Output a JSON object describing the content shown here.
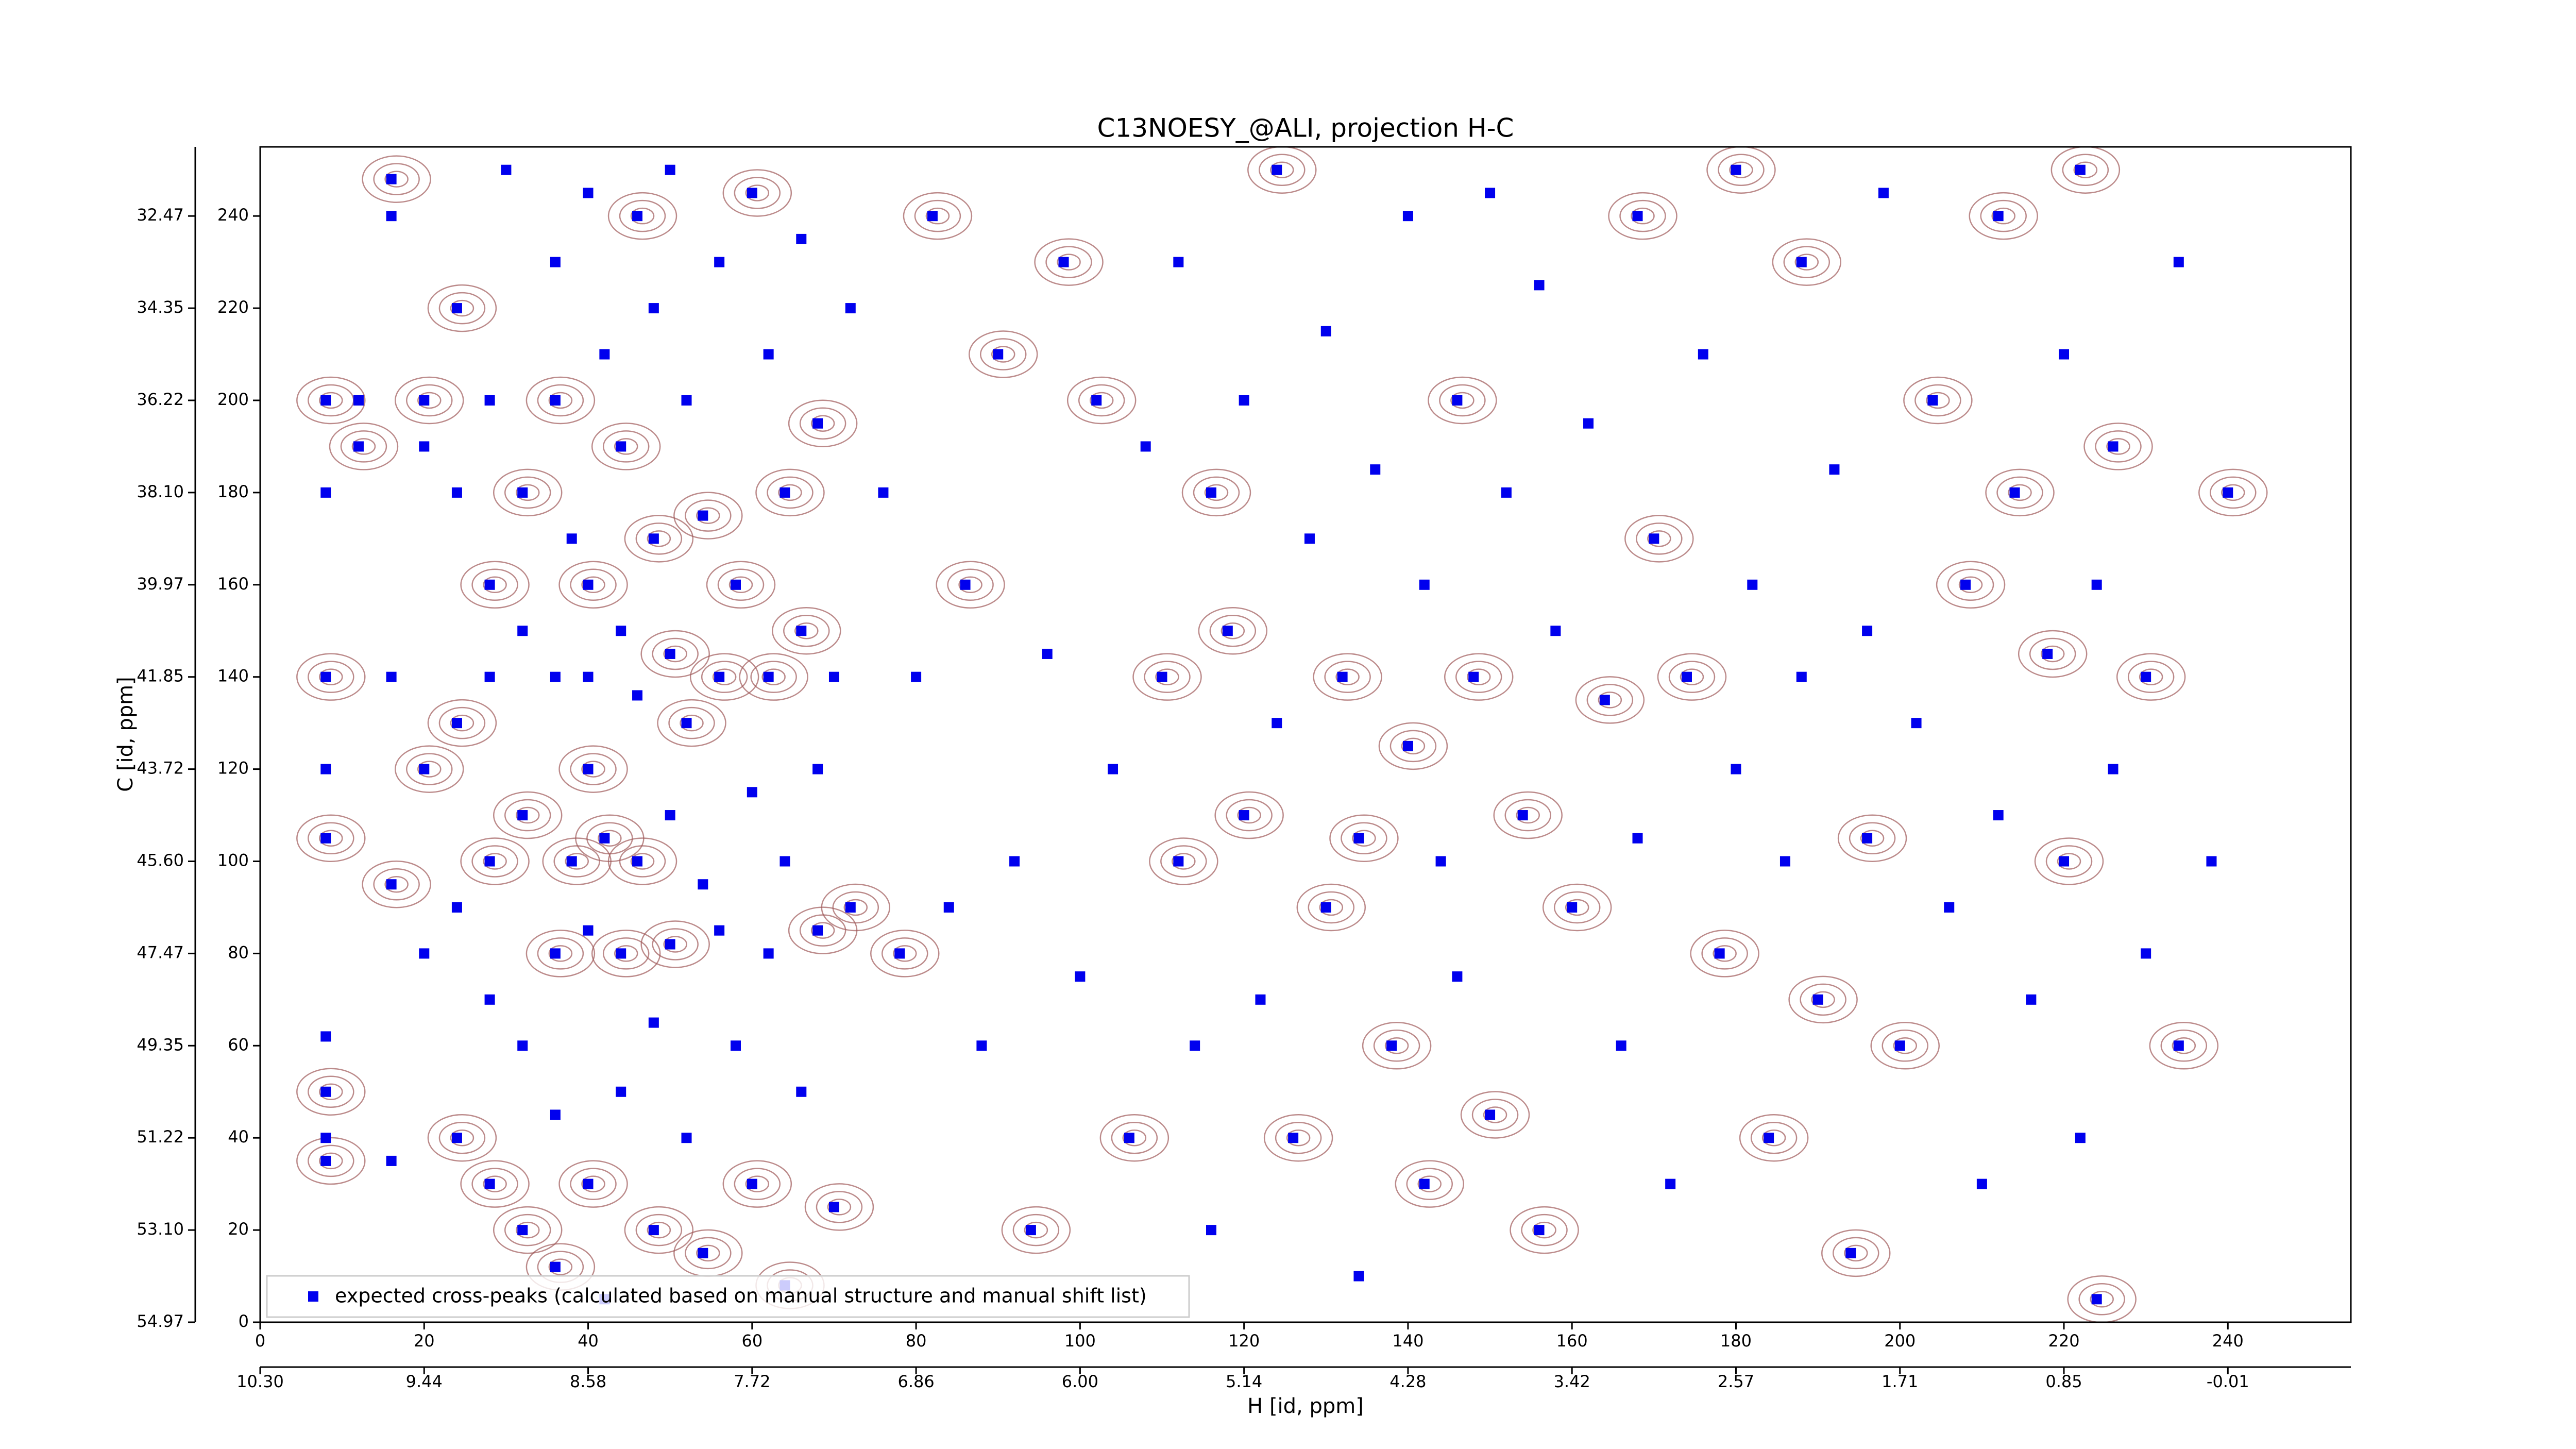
{
  "chart_data": {
    "type": "scatter",
    "title": "C13NOESY_@ALI, projection H-C",
    "xlabel": "H [id, ppm]",
    "ylabel": "C [id, ppm]",
    "legend": "lower left",
    "series": [
      {
        "name": "expected cross-peaks (calculated based on manual structure and manual shift list)",
        "color": "#0000ee",
        "x": [
          8,
          8,
          8,
          8,
          8,
          8,
          8,
          8,
          8,
          12,
          12,
          16,
          16,
          16,
          16,
          16,
          20,
          20,
          20,
          20,
          24,
          24,
          24,
          24,
          24,
          28,
          28,
          28,
          28,
          28,
          28,
          30,
          32,
          32,
          32,
          32,
          32,
          36,
          36,
          36,
          36,
          36,
          36,
          38,
          38,
          40,
          40,
          40,
          40,
          40,
          40,
          42,
          42,
          42,
          44,
          44,
          44,
          44,
          46,
          46,
          46,
          48,
          48,
          48,
          48,
          50,
          50,
          50,
          50,
          52,
          52,
          52,
          54,
          54,
          54,
          56,
          56,
          56,
          58,
          58,
          60,
          60,
          60,
          62,
          62,
          62,
          64,
          64,
          64,
          66,
          66,
          66,
          68,
          68,
          68,
          70,
          70,
          72,
          72,
          76,
          78,
          80,
          82,
          84,
          86,
          88,
          90,
          92,
          94,
          96,
          98,
          100,
          102,
          104,
          106,
          108,
          110,
          112,
          112,
          114,
          116,
          116,
          118,
          120,
          120,
          122,
          124,
          124,
          126,
          128,
          130,
          130,
          132,
          134,
          134,
          136,
          138,
          140,
          140,
          142,
          142,
          144,
          146,
          146,
          148,
          150,
          150,
          152,
          154,
          156,
          156,
          158,
          160,
          162,
          164,
          166,
          168,
          168,
          170,
          172,
          174,
          176,
          178,
          180,
          180,
          182,
          184,
          186,
          188,
          188,
          190,
          192,
          194,
          196,
          196,
          198,
          200,
          202,
          204,
          206,
          208,
          210,
          212,
          212,
          214,
          216,
          218,
          220,
          220,
          222,
          222,
          224,
          224,
          226,
          226,
          230,
          230,
          234,
          234,
          238,
          240
        ],
        "y": [
          200,
          180,
          140,
          120,
          105,
          62,
          50,
          40,
          35,
          200,
          190,
          240,
          248,
          140,
          95,
          35,
          200,
          190,
          120,
          80,
          220,
          180,
          130,
          90,
          40,
          200,
          160,
          140,
          100,
          70,
          30,
          250,
          180,
          150,
          110,
          60,
          20,
          230,
          200,
          140,
          80,
          45,
          12,
          170,
          100,
          245,
          160,
          140,
          120,
          85,
          30,
          210,
          105,
          5,
          190,
          150,
          80,
          50,
          240,
          136,
          100,
          220,
          170,
          65,
          20,
          250,
          145,
          110,
          82,
          200,
          130,
          40,
          175,
          95,
          15,
          230,
          140,
          85,
          160,
          60,
          245,
          115,
          30,
          210,
          140,
          80,
          180,
          100,
          8,
          235,
          150,
          50,
          195,
          120,
          85,
          140,
          25,
          220,
          90,
          180,
          80,
          140,
          240,
          90,
          160,
          60,
          210,
          100,
          20,
          145,
          230,
          75,
          200,
          120,
          40,
          190,
          140,
          230,
          100,
          60,
          180,
          20,
          150,
          200,
          110,
          70,
          250,
          130,
          40,
          170,
          90,
          215,
          140,
          10,
          105,
          185,
          60,
          240,
          125,
          160,
          30,
          100,
          200,
          75,
          140,
          245,
          45,
          180,
          110,
          225,
          20,
          150,
          90,
          195,
          135,
          60,
          240,
          105,
          170,
          30,
          140,
          210,
          80,
          120,
          250,
          160,
          40,
          100,
          230,
          140,
          70,
          185,
          15,
          150,
          105,
          245,
          60,
          130,
          200,
          90,
          160,
          30,
          240,
          110,
          180,
          70,
          145,
          210,
          100,
          40,
          250,
          160,
          5,
          120,
          190,
          80,
          140,
          230,
          60,
          100,
          180
        ]
      }
    ],
    "xlim": [
      0,
      255
    ],
    "ylim": [
      0,
      255
    ],
    "xticks": [
      0,
      20,
      40,
      60,
      80,
      100,
      120,
      140,
      160,
      180,
      200,
      220,
      240
    ],
    "yticks": [
      0,
      20,
      40,
      60,
      80,
      100,
      120,
      140,
      160,
      180,
      200,
      220,
      240
    ],
    "x2ticks": [
      {
        "value": 0,
        "label": "10.30"
      },
      {
        "value": 20,
        "label": "9.44"
      },
      {
        "value": 40,
        "label": "8.58"
      },
      {
        "value": 60,
        "label": "7.72"
      },
      {
        "value": 80,
        "label": "6.86"
      },
      {
        "value": 100,
        "label": "6.00"
      },
      {
        "value": 120,
        "label": "5.14"
      },
      {
        "value": 140,
        "label": "4.28"
      },
      {
        "value": 160,
        "label": "3.42"
      },
      {
        "value": 180,
        "label": "2.57"
      },
      {
        "value": 200,
        "label": "1.71"
      },
      {
        "value": 220,
        "label": "0.85"
      },
      {
        "value": 240,
        "label": "-0.01"
      }
    ],
    "y2ticks": [
      {
        "value": 0,
        "label": "54.97"
      },
      {
        "value": 20,
        "label": "53.10"
      },
      {
        "value": 40,
        "label": "51.22"
      },
      {
        "value": 60,
        "label": "49.35"
      },
      {
        "value": 80,
        "label": "47.47"
      },
      {
        "value": 100,
        "label": "45.60"
      },
      {
        "value": 120,
        "label": "43.72"
      },
      {
        "value": 140,
        "label": "41.85"
      },
      {
        "value": 160,
        "label": "39.97"
      },
      {
        "value": 180,
        "label": "38.10"
      },
      {
        "value": 200,
        "label": "36.22"
      },
      {
        "value": 220,
        "label": "34.35"
      },
      {
        "value": 240,
        "label": "32.47"
      }
    ]
  }
}
